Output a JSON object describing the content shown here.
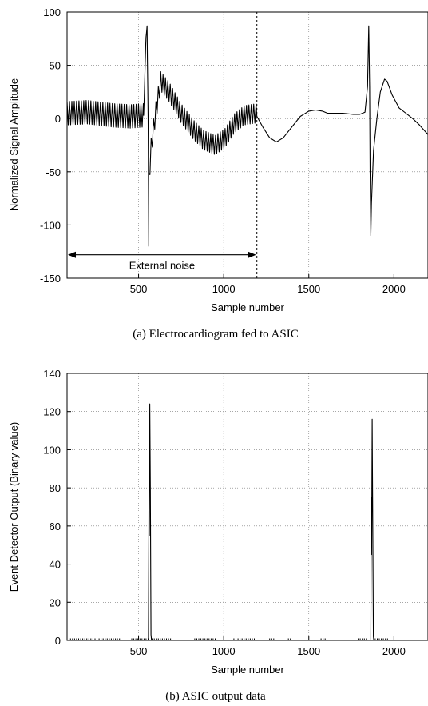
{
  "chart_data": [
    {
      "type": "line",
      "caption": "(a) Electrocardiogram fed to ASIC",
      "xlabel": "Sample number",
      "ylabel": "Normalized Signal Amplitude",
      "xlim": [
        80,
        2200
      ],
      "ylim": [
        -150,
        100
      ],
      "xticks": [
        500,
        1000,
        1500,
        2000
      ],
      "yticks": [
        -150,
        -100,
        -50,
        0,
        50,
        100
      ],
      "grid": true,
      "annotation": {
        "text": "External noise",
        "x_start": 80,
        "x_end": 1195,
        "y": -128
      },
      "marker_line_x": 1195,
      "series": [
        {
          "segments": [
            {
              "x_start": 80,
              "x_end": 530,
              "noise_amplitude": 11,
              "noise_period": 14,
              "baseline": [
                [
                  80,
                  5
                ],
                [
                  200,
                  6
                ],
                [
                  350,
                  3
                ],
                [
                  450,
                  2
                ],
                [
                  530,
                  3
                ]
              ]
            },
            {
              "x_start": 530,
              "x_end": 560,
              "noise_amplitude": 0,
              "noise_period": 14,
              "baseline": [
                [
                  530,
                  3
                ],
                [
                  537,
                  40
                ],
                [
                  543,
                  75
                ],
                [
                  550,
                  87
                ],
                [
                  552,
                  55
                ],
                [
                  556,
                  0
                ],
                [
                  560,
                  -120
                ]
              ]
            },
            {
              "x_start": 560,
              "x_end": 1195,
              "noise_amplitude": 9,
              "noise_period": 14,
              "baseline": [
                [
                  560,
                  -60
                ],
                [
                  575,
                  -25
                ],
                [
                  600,
                  5
                ],
                [
                  630,
                  35
                ],
                [
                  680,
                  25
                ],
                [
                  750,
                  5
                ],
                [
                  820,
                  -10
                ],
                [
                  880,
                  -20
                ],
                [
                  950,
                  -25
                ],
                [
                  1010,
                  -18
                ],
                [
                  1060,
                  -5
                ],
                [
                  1120,
                  3
                ],
                [
                  1195,
                  5
                ]
              ]
            }
          ],
          "clean_segment": [
            [
              1195,
              2
            ],
            [
              1230,
              -8
            ],
            [
              1270,
              -18
            ],
            [
              1310,
              -22
            ],
            [
              1350,
              -18
            ],
            [
              1400,
              -8
            ],
            [
              1450,
              2
            ],
            [
              1500,
              7
            ],
            [
              1540,
              8
            ],
            [
              1580,
              7
            ],
            [
              1610,
              5
            ],
            [
              1700,
              5
            ],
            [
              1760,
              4
            ],
            [
              1800,
              4
            ],
            [
              1830,
              6
            ],
            [
              1845,
              30
            ],
            [
              1852,
              87
            ],
            [
              1857,
              30
            ],
            [
              1860,
              -50
            ],
            [
              1864,
              -110
            ],
            [
              1868,
              -80
            ],
            [
              1880,
              -30
            ],
            [
              1900,
              0
            ],
            [
              1920,
              25
            ],
            [
              1945,
              37
            ],
            [
              1960,
              35
            ],
            [
              1990,
              22
            ],
            [
              2030,
              10
            ],
            [
              2070,
              5
            ],
            [
              2110,
              0
            ],
            [
              2150,
              -6
            ],
            [
              2200,
              -15
            ]
          ]
        }
      ]
    },
    {
      "type": "line",
      "caption": "(b) ASIC output data",
      "xlabel": "Sample number",
      "ylabel": "Event Detector Output (Binary value)",
      "xlim": [
        80,
        2200
      ],
      "ylim": [
        0,
        140
      ],
      "xticks": [
        500,
        1000,
        1500,
        2000
      ],
      "yticks": [
        0,
        20,
        40,
        60,
        80,
        100,
        120,
        140
      ],
      "grid": true,
      "series": [
        {
          "points": [
            [
              80,
              0
            ],
            [
              555,
              0
            ],
            [
              558,
              0
            ],
            [
              561,
              75
            ],
            [
              563,
              55
            ],
            [
              566,
              124
            ],
            [
              569,
              80
            ],
            [
              573,
              3
            ],
            [
              576,
              0
            ],
            [
              1850,
              0
            ],
            [
              1864,
              0
            ],
            [
              1867,
              75
            ],
            [
              1869,
              45
            ],
            [
              1872,
              116
            ],
            [
              1875,
              70
            ],
            [
              1879,
              2
            ],
            [
              1882,
              0
            ],
            [
              2200,
              0
            ]
          ],
          "small_noise": [
            [
              100,
              400
            ],
            [
              460,
              560
            ],
            [
              580,
              700
            ],
            [
              830,
              960
            ],
            [
              1060,
              1190
            ],
            [
              1270,
              1300
            ],
            [
              1380,
              1400
            ],
            [
              1560,
              1600
            ],
            [
              1790,
              1850
            ],
            [
              1890,
              1970
            ]
          ]
        }
      ]
    }
  ]
}
